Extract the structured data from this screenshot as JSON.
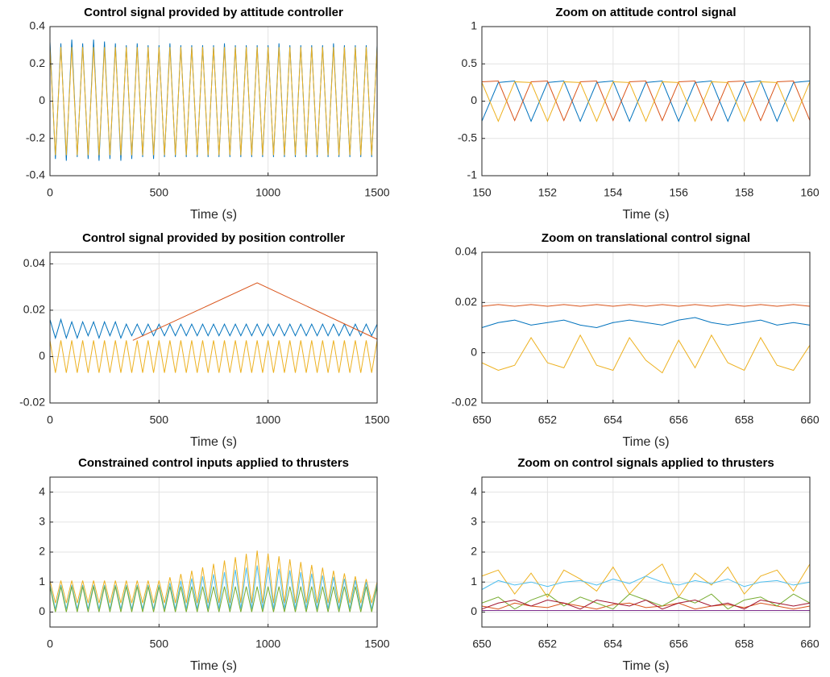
{
  "chart_data": [
    {
      "type": "line",
      "title": "Control signal provided by attitude controller",
      "x_label": "Time (s)",
      "xlim": [
        0,
        1500
      ],
      "xticks": [
        0,
        500,
        1000,
        1500
      ],
      "ylim": [
        -0.4,
        0.4
      ],
      "yticks": [
        -0.4,
        -0.2,
        0,
        0.2,
        0.4
      ],
      "grid": true,
      "x": [
        0,
        25,
        50,
        75,
        100,
        125,
        150,
        175,
        200,
        225,
        250,
        275,
        300,
        325,
        350,
        375,
        400,
        425,
        450,
        475,
        500,
        525,
        550,
        575,
        600,
        625,
        650,
        675,
        700,
        725,
        750,
        775,
        800,
        825,
        850,
        875,
        900,
        925,
        950,
        975,
        1000,
        1025,
        1050,
        1075,
        1100,
        1125,
        1150,
        1175,
        1200,
        1225,
        1250,
        1275,
        1300,
        1325,
        1350,
        1375,
        1400,
        1425,
        1450,
        1475,
        1500
      ],
      "series": [
        {
          "color": "#0072BD",
          "values": [
            0.32,
            -0.31,
            0.31,
            -0.32,
            0.33,
            -0.3,
            0.31,
            -0.31,
            0.33,
            -0.32,
            0.32,
            -0.31,
            0.31,
            -0.32,
            0.3,
            -0.31,
            0.31,
            -0.3,
            0.3,
            -0.31,
            0.3,
            -0.3,
            0.31,
            -0.3,
            0.3,
            -0.3,
            0.3,
            -0.3,
            0.3,
            -0.3,
            0.3,
            -0.3,
            0.31,
            -0.3,
            0.3,
            -0.3,
            0.3,
            -0.3,
            0.3,
            -0.3,
            0.3,
            -0.3,
            0.31,
            -0.3,
            0.3,
            -0.3,
            0.3,
            -0.3,
            0.3,
            -0.3,
            0.3,
            -0.3,
            0.31,
            -0.3,
            0.3,
            -0.3,
            0.3,
            -0.3,
            0.3,
            -0.3,
            0.3
          ]
        },
        {
          "color": "#EDB120",
          "values": [
            0.29,
            -0.29,
            0.29,
            -0.29,
            0.29,
            -0.29,
            0.29,
            -0.29,
            0.29,
            -0.29,
            0.29,
            -0.29,
            0.29,
            -0.29,
            0.29,
            -0.29,
            0.29,
            -0.29,
            0.29,
            -0.29,
            0.29,
            -0.29,
            0.29,
            -0.29,
            0.29,
            -0.29,
            0.29,
            -0.29,
            0.29,
            -0.29,
            0.29,
            -0.29,
            0.29,
            -0.29,
            0.29,
            -0.29,
            0.29,
            -0.29,
            0.29,
            -0.29,
            0.29,
            -0.29,
            0.29,
            -0.29,
            0.29,
            -0.29,
            0.29,
            -0.29,
            0.29,
            -0.29,
            0.29,
            -0.29,
            0.29,
            -0.29,
            0.29,
            -0.29,
            0.29,
            -0.29,
            0.29,
            -0.29,
            0.29
          ]
        }
      ]
    },
    {
      "type": "line",
      "title": "Zoom on attitude control signal",
      "x_label": "Time (s)",
      "xlim": [
        150,
        160
      ],
      "xticks": [
        150,
        152,
        154,
        156,
        158,
        160
      ],
      "ylim": [
        -1,
        1
      ],
      "yticks": [
        -1,
        -0.5,
        0,
        0.5,
        1
      ],
      "grid": true,
      "x": [
        150,
        150.5,
        151,
        151.5,
        152,
        152.5,
        153,
        153.5,
        154,
        154.5,
        155,
        155.5,
        156,
        156.5,
        157,
        157.5,
        158,
        158.5,
        159,
        159.5,
        160
      ],
      "series": [
        {
          "color": "#0072BD",
          "values": [
            -0.27,
            0.25,
            0.27,
            -0.27,
            0.25,
            0.27,
            -0.27,
            0.25,
            0.27,
            -0.27,
            0.25,
            0.27,
            -0.27,
            0.25,
            0.27,
            -0.27,
            0.25,
            0.27,
            -0.27,
            0.25,
            0.27
          ]
        },
        {
          "color": "#D95319",
          "values": [
            0.26,
            0.27,
            -0.26,
            0.26,
            0.27,
            -0.26,
            0.26,
            0.27,
            -0.26,
            0.26,
            0.27,
            -0.26,
            0.26,
            0.27,
            -0.26,
            0.26,
            0.27,
            -0.26,
            0.26,
            0.27,
            -0.26
          ]
        },
        {
          "color": "#EDB120",
          "values": [
            0.25,
            -0.27,
            0.26,
            0.25,
            -0.27,
            0.26,
            0.25,
            -0.27,
            0.26,
            0.25,
            -0.27,
            0.26,
            0.25,
            -0.27,
            0.26,
            0.25,
            -0.27,
            0.26,
            0.25,
            -0.27,
            0.26
          ]
        }
      ]
    },
    {
      "type": "line",
      "title": "Control signal provided by position controller",
      "x_label": "Time (s)",
      "xlim": [
        0,
        1500
      ],
      "xticks": [
        0,
        500,
        1000,
        1500
      ],
      "ylim": [
        -0.02,
        0.045
      ],
      "yticks": [
        -0.02,
        0,
        0.02,
        0.04
      ],
      "grid": true,
      "x": [
        0,
        25,
        50,
        75,
        100,
        125,
        150,
        175,
        200,
        225,
        250,
        275,
        300,
        325,
        350,
        375,
        400,
        425,
        450,
        475,
        500,
        525,
        550,
        575,
        600,
        625,
        650,
        675,
        700,
        725,
        750,
        775,
        800,
        825,
        850,
        875,
        900,
        925,
        950,
        975,
        1000,
        1025,
        1050,
        1075,
        1100,
        1125,
        1150,
        1175,
        1200,
        1225,
        1250,
        1275,
        1300,
        1325,
        1350,
        1375,
        1400,
        1425,
        1450,
        1475,
        1500
      ],
      "series": [
        {
          "color": "#0072BD",
          "values": [
            0.016,
            0.008,
            0.016,
            0.008,
            0.015,
            0.008,
            0.015,
            0.009,
            0.015,
            0.008,
            0.015,
            0.009,
            0.015,
            0.008,
            0.014,
            0.009,
            0.014,
            0.009,
            0.014,
            0.009,
            0.014,
            0.009,
            0.014,
            0.009,
            0.014,
            0.009,
            0.014,
            0.009,
            0.014,
            0.009,
            0.014,
            0.009,
            0.014,
            0.009,
            0.014,
            0.009,
            0.014,
            0.009,
            0.014,
            0.009,
            0.014,
            0.009,
            0.014,
            0.009,
            0.014,
            0.009,
            0.014,
            0.009,
            0.014,
            0.009,
            0.014,
            0.009,
            0.014,
            0.009,
            0.014,
            0.009,
            0.014,
            0.009,
            0.014,
            0.009,
            0.014
          ]
        },
        {
          "color": "#D95319",
          "x": [
            380,
            950,
            1500
          ],
          "values": [
            0.007,
            0.0318,
            0.0075
          ]
        },
        {
          "color": "#EDB120",
          "values": [
            0.007,
            -0.007,
            0.007,
            -0.007,
            0.007,
            -0.007,
            0.007,
            -0.007,
            0.007,
            -0.007,
            0.007,
            -0.007,
            0.007,
            -0.007,
            0.007,
            -0.007,
            0.007,
            -0.007,
            0.007,
            -0.007,
            0.007,
            -0.007,
            0.007,
            -0.007,
            0.007,
            -0.007,
            0.007,
            -0.007,
            0.007,
            -0.007,
            0.007,
            -0.007,
            0.007,
            -0.007,
            0.007,
            -0.007,
            0.007,
            -0.007,
            0.007,
            -0.007,
            0.007,
            -0.007,
            0.007,
            -0.007,
            0.007,
            -0.007,
            0.007,
            -0.007,
            0.007,
            -0.007,
            0.007,
            -0.007,
            0.007,
            -0.007,
            0.007,
            -0.007,
            0.007,
            -0.007,
            0.007,
            -0.007,
            0.007
          ]
        }
      ]
    },
    {
      "type": "line",
      "title": "Zoom on translational control signal",
      "x_label": "Time (s)",
      "xlim": [
        650,
        660
      ],
      "xticks": [
        650,
        652,
        654,
        656,
        658,
        660
      ],
      "ylim": [
        -0.02,
        0.04
      ],
      "yticks": [
        -0.02,
        0,
        0.02,
        0.04
      ],
      "grid": true,
      "x": [
        650,
        650.5,
        651,
        651.5,
        652,
        652.5,
        653,
        653.5,
        654,
        654.5,
        655,
        655.5,
        656,
        656.5,
        657,
        657.5,
        658,
        658.5,
        659,
        659.5,
        660
      ],
      "series": [
        {
          "color": "#0072BD",
          "values": [
            0.01,
            0.012,
            0.013,
            0.011,
            0.012,
            0.013,
            0.011,
            0.01,
            0.012,
            0.013,
            0.012,
            0.011,
            0.013,
            0.014,
            0.012,
            0.011,
            0.012,
            0.013,
            0.011,
            0.012,
            0.011
          ]
        },
        {
          "color": "#D95319",
          "values": [
            0.0185,
            0.0192,
            0.0185,
            0.0192,
            0.0185,
            0.0192,
            0.0185,
            0.0192,
            0.0185,
            0.0192,
            0.0185,
            0.0192,
            0.0185,
            0.0192,
            0.0185,
            0.0192,
            0.0185,
            0.0192,
            0.0185,
            0.0192,
            0.0185
          ]
        },
        {
          "color": "#EDB120",
          "values": [
            -0.004,
            -0.007,
            -0.005,
            0.006,
            -0.004,
            -0.006,
            0.007,
            -0.005,
            -0.007,
            0.006,
            -0.003,
            -0.008,
            0.005,
            -0.006,
            0.007,
            -0.004,
            -0.007,
            0.006,
            -0.005,
            -0.007,
            0.003
          ]
        }
      ]
    },
    {
      "type": "line",
      "title": "Constrained control inputs applied to thrusters",
      "x_label": "Time (s)",
      "xlim": [
        0,
        1500
      ],
      "xticks": [
        0,
        500,
        1000,
        1500
      ],
      "ylim": [
        -0.5,
        4.5
      ],
      "yticks": [
        0,
        1,
        2,
        3,
        4
      ],
      "grid": true,
      "x": [
        0,
        25,
        50,
        75,
        100,
        125,
        150,
        175,
        200,
        225,
        250,
        275,
        300,
        325,
        350,
        375,
        400,
        425,
        450,
        475,
        500,
        525,
        550,
        575,
        600,
        625,
        650,
        675,
        700,
        725,
        750,
        775,
        800,
        825,
        850,
        875,
        900,
        925,
        950,
        975,
        1000,
        1025,
        1050,
        1075,
        1100,
        1125,
        1150,
        1175,
        1200,
        1225,
        1250,
        1275,
        1300,
        1325,
        1350,
        1375,
        1400,
        1425,
        1450,
        1475,
        1500
      ],
      "series": [
        {
          "color": "#EDB120",
          "values": [
            1.05,
            0.3,
            1.05,
            0.3,
            1.05,
            0.3,
            1.05,
            0.3,
            1.05,
            0.3,
            1.05,
            0.3,
            1.05,
            0.3,
            1.05,
            0.3,
            1.05,
            0.3,
            1.05,
            0.3,
            1.05,
            0.3,
            1.16,
            0.3,
            1.27,
            0.3,
            1.38,
            0.3,
            1.49,
            0.3,
            1.61,
            0.3,
            1.72,
            0.3,
            1.83,
            0.3,
            1.94,
            0.3,
            2.05,
            0.3,
            1.95,
            0.3,
            1.86,
            0.3,
            1.76,
            0.3,
            1.67,
            0.3,
            1.57,
            0.3,
            1.48,
            0.3,
            1.38,
            0.3,
            1.29,
            0.3,
            1.19,
            0.3,
            1.1,
            0.3,
            1.0
          ]
        },
        {
          "color": "#4DBEEE",
          "values": [
            0.9,
            0.1,
            0.9,
            0.1,
            0.9,
            0.1,
            0.9,
            0.1,
            0.9,
            0.1,
            0.9,
            0.1,
            0.9,
            0.1,
            0.9,
            0.1,
            0.9,
            0.1,
            0.9,
            0.1,
            0.9,
            0.1,
            0.97,
            0.1,
            1.04,
            0.1,
            1.12,
            0.1,
            1.19,
            0.1,
            1.26,
            0.1,
            1.33,
            0.1,
            1.41,
            0.1,
            1.48,
            0.1,
            1.55,
            0.1,
            1.5,
            0.1,
            1.44,
            0.1,
            1.39,
            0.1,
            1.33,
            0.1,
            1.28,
            0.1,
            1.22,
            0.1,
            1.17,
            0.1,
            1.11,
            0.1,
            1.06,
            0.1,
            1.0,
            0.1,
            0.95
          ]
        },
        {
          "color": "#77AC30",
          "values": [
            0.85,
            0,
            0.85,
            0,
            0.85,
            0,
            0.85,
            0,
            0.85,
            0,
            0.85,
            0,
            0.85,
            0,
            0.85,
            0,
            0.85,
            0,
            0.85,
            0,
            0.85,
            0,
            0.85,
            0,
            0.85,
            0,
            0.85,
            0,
            0.85,
            0,
            0.85,
            0,
            0.85,
            0,
            0.85,
            0,
            0.85,
            0,
            0.85,
            0,
            0.85,
            0,
            0.85,
            0,
            0.85,
            0,
            0.85,
            0,
            0.85,
            0,
            0.85,
            0,
            0.85,
            0,
            0.85,
            0,
            0.85,
            0,
            0.85,
            0,
            0.85
          ]
        }
      ]
    },
    {
      "type": "line",
      "title": "Zoom on control signals applied to thrusters",
      "x_label": "Time (s)",
      "xlim": [
        650,
        660
      ],
      "xticks": [
        650,
        652,
        654,
        656,
        658,
        660
      ],
      "ylim": [
        -0.5,
        4.5
      ],
      "yticks": [
        0,
        1,
        2,
        3,
        4
      ],
      "grid": true,
      "x": [
        650,
        650.5,
        651,
        651.5,
        652,
        652.5,
        653,
        653.5,
        654,
        654.5,
        655,
        655.5,
        656,
        656.5,
        657,
        657.5,
        658,
        658.5,
        659,
        659.5,
        660
      ],
      "series": [
        {
          "color": "#D95319",
          "values": [
            0.2,
            0.1,
            0.3,
            0.2,
            0.15,
            0.3,
            0.2,
            0.1,
            0.25,
            0.3,
            0.15,
            0.2,
            0.3,
            0.1,
            0.2,
            0.25,
            0.15,
            0.3,
            0.2,
            0.1,
            0.2
          ]
        },
        {
          "color": "#EDB120",
          "values": [
            1.2,
            1.4,
            0.6,
            1.3,
            0.5,
            1.4,
            1.1,
            0.7,
            1.5,
            0.6,
            1.2,
            1.6,
            0.5,
            1.3,
            0.9,
            1.5,
            0.6,
            1.2,
            1.4,
            0.7,
            1.6
          ]
        },
        {
          "color": "#7E2F8E",
          "x": [
            650,
            660
          ],
          "values": [
            0.05,
            0.05
          ]
        },
        {
          "color": "#77AC30",
          "values": [
            0.3,
            0.5,
            0.1,
            0.4,
            0.6,
            0.2,
            0.5,
            0.3,
            0.1,
            0.6,
            0.4,
            0.2,
            0.5,
            0.3,
            0.6,
            0.1,
            0.4,
            0.5,
            0.2,
            0.6,
            0.3
          ]
        },
        {
          "color": "#4DBEEE",
          "values": [
            0.75,
            1.05,
            0.9,
            1.0,
            0.85,
            1.0,
            1.05,
            0.9,
            1.1,
            0.95,
            1.2,
            1.0,
            0.9,
            1.05,
            0.95,
            1.1,
            0.85,
            1.0,
            1.05,
            0.9,
            1.0
          ]
        },
        {
          "color": "#A2142F",
          "values": [
            0.1,
            0.3,
            0.4,
            0.2,
            0.4,
            0.3,
            0.1,
            0.4,
            0.3,
            0.2,
            0.4,
            0.1,
            0.3,
            0.4,
            0.2,
            0.3,
            0.1,
            0.4,
            0.3,
            0.2,
            0.3
          ]
        }
      ]
    }
  ]
}
